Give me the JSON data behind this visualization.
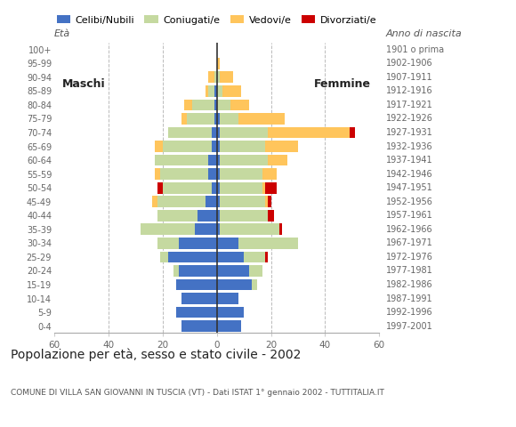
{
  "age_groups": [
    "0-4",
    "5-9",
    "10-14",
    "15-19",
    "20-24",
    "25-29",
    "30-34",
    "35-39",
    "40-44",
    "45-49",
    "50-54",
    "55-59",
    "60-64",
    "65-69",
    "70-74",
    "75-79",
    "80-84",
    "85-89",
    "90-94",
    "95-99",
    "100+"
  ],
  "birth_years": [
    "1997-2001",
    "1992-1996",
    "1987-1991",
    "1982-1986",
    "1977-1981",
    "1972-1976",
    "1967-1971",
    "1962-1966",
    "1957-1961",
    "1952-1956",
    "1947-1951",
    "1942-1946",
    "1937-1941",
    "1932-1936",
    "1927-1931",
    "1922-1926",
    "1917-1921",
    "1912-1916",
    "1907-1911",
    "1902-1906",
    "1901 o prima"
  ],
  "colors": {
    "celibe": "#4472c4",
    "coniugato": "#c5d9a0",
    "vedovo": "#ffc55c",
    "divorziato": "#cc0000"
  },
  "males": {
    "celibe": [
      13,
      15,
      13,
      15,
      14,
      18,
      14,
      8,
      7,
      4,
      2,
      3,
      3,
      2,
      2,
      1,
      1,
      1,
      0,
      0,
      0
    ],
    "coniugato": [
      0,
      0,
      0,
      0,
      2,
      3,
      8,
      20,
      15,
      18,
      18,
      18,
      20,
      18,
      16,
      10,
      8,
      2,
      1,
      0,
      0
    ],
    "vedovo": [
      0,
      0,
      0,
      0,
      0,
      0,
      0,
      0,
      0,
      2,
      0,
      2,
      0,
      3,
      0,
      2,
      3,
      1,
      2,
      0,
      0
    ],
    "divorziato": [
      0,
      0,
      0,
      0,
      0,
      0,
      0,
      0,
      0,
      0,
      2,
      0,
      0,
      0,
      0,
      0,
      0,
      0,
      0,
      0,
      0
    ]
  },
  "females": {
    "celibe": [
      9,
      10,
      8,
      13,
      12,
      10,
      8,
      1,
      1,
      1,
      1,
      1,
      1,
      1,
      1,
      1,
      0,
      0,
      0,
      0,
      0
    ],
    "coniugato": [
      0,
      0,
      0,
      2,
      5,
      8,
      22,
      22,
      18,
      17,
      16,
      16,
      18,
      17,
      18,
      7,
      5,
      2,
      1,
      0,
      0
    ],
    "vedovo": [
      0,
      0,
      0,
      0,
      0,
      0,
      0,
      0,
      0,
      1,
      1,
      5,
      7,
      12,
      30,
      17,
      7,
      7,
      5,
      1,
      0
    ],
    "divorziato": [
      0,
      0,
      0,
      0,
      0,
      1,
      0,
      1,
      2,
      1,
      4,
      0,
      0,
      0,
      2,
      0,
      0,
      0,
      0,
      0,
      0
    ]
  },
  "xlim": 60,
  "title": "Popolazione per età, sesso e stato civile - 2002",
  "subtitle": "COMUNE DI VILLA SAN GIOVANNI IN TUSCIA (VT) - Dati ISTAT 1° gennaio 2002 - TUTTITALIA.IT",
  "eta_label": "Età",
  "anno_label": "Anno di nascita",
  "maschi_label": "Maschi",
  "femmine_label": "Femmine",
  "legend_labels": [
    "Celibi/Nubili",
    "Coniugati/e",
    "Vedovi/e",
    "Divorziati/e"
  ],
  "bar_height": 0.82,
  "grid_lines": [
    -40,
    -20,
    20,
    40
  ]
}
